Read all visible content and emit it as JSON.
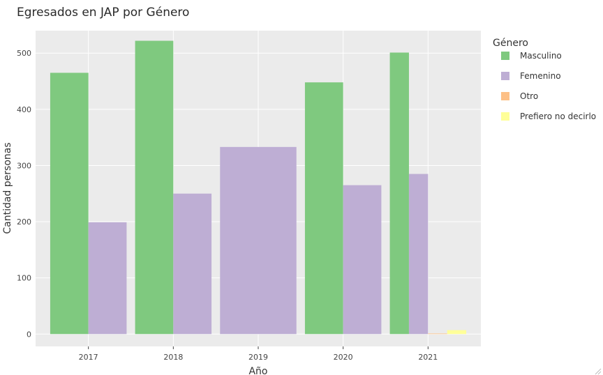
{
  "chart_data": {
    "type": "bar",
    "title": "Egresados en JAP por Género",
    "xlabel": "Año",
    "ylabel": "Cantidad personas",
    "categories": [
      "2017",
      "2018",
      "2019",
      "2020",
      "2021"
    ],
    "ylim": [
      -22,
      540
    ],
    "yticks": [
      0,
      100,
      200,
      300,
      400,
      500
    ],
    "grid": true,
    "legend": {
      "title": "Género",
      "position": "right"
    },
    "series": [
      {
        "name": "Masculino",
        "color": "#7fc97f",
        "values": [
          465,
          522,
          null,
          448,
          501
        ]
      },
      {
        "name": "Femenino",
        "color": "#beaed4",
        "values": [
          199,
          250,
          333,
          265,
          285
        ]
      },
      {
        "name": "Otro",
        "color": "#fdc086",
        "values": [
          null,
          null,
          null,
          null,
          1
        ]
      },
      {
        "name": "Prefiero no decirlo",
        "color": "#ffff99",
        "values": [
          null,
          null,
          null,
          null,
          7
        ]
      }
    ]
  }
}
